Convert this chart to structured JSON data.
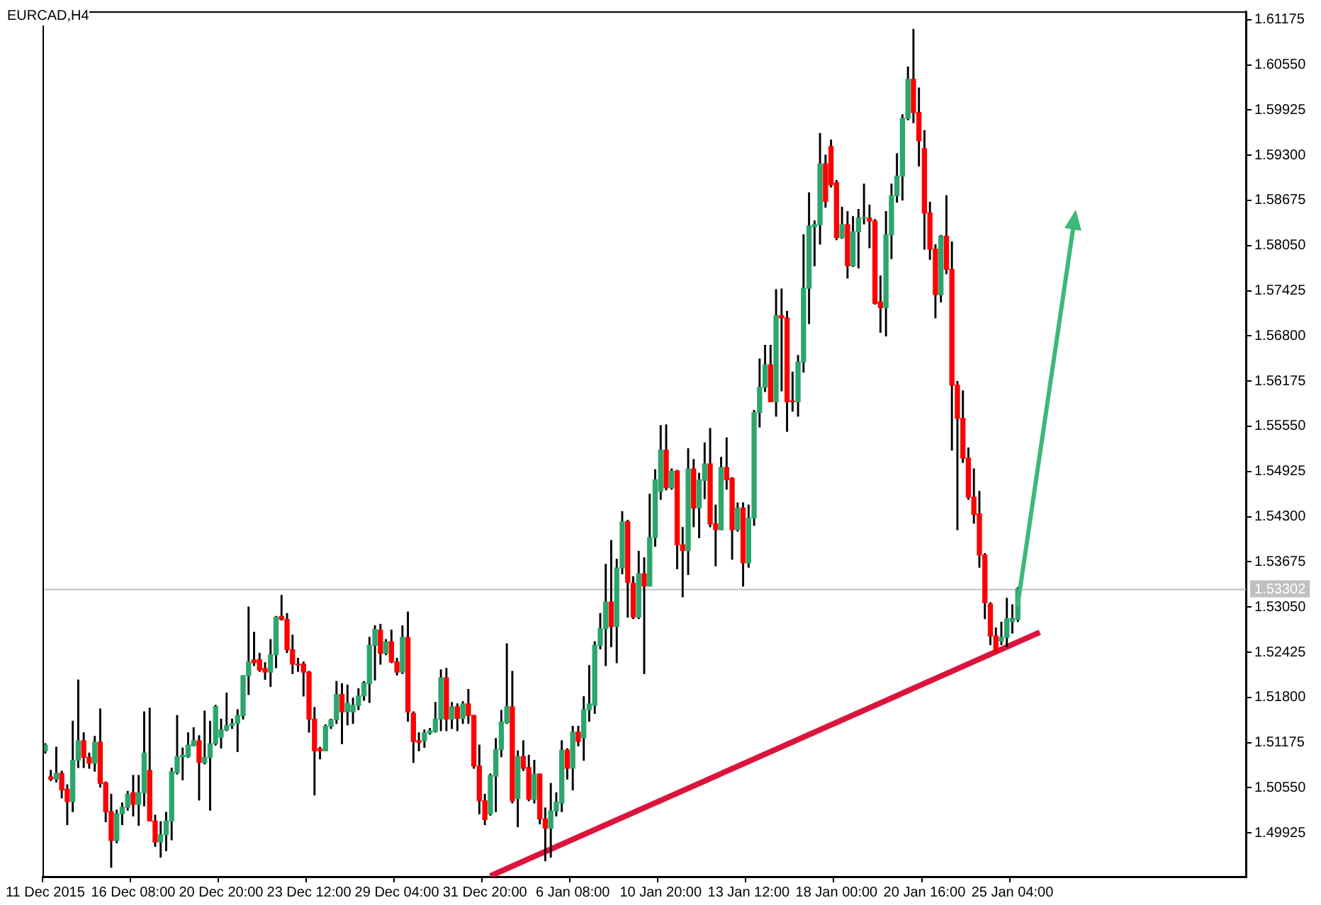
{
  "chart_data": {
    "type": "candlestick",
    "title": "EURCAD,H4",
    "categories": [
      "11 Dec 2015",
      null,
      null,
      null,
      null,
      null,
      null,
      null,
      null,
      null,
      null,
      null,
      null,
      null,
      null,
      null,
      "16 Dec 08:00",
      null,
      null,
      null,
      null,
      null,
      null,
      null,
      null,
      null,
      null,
      null,
      null,
      null,
      null,
      null,
      "20 Dec 20:00",
      null,
      null,
      null,
      null,
      null,
      null,
      null,
      null,
      null,
      null,
      null,
      null,
      null,
      null,
      null,
      "23 Dec 12:00",
      null,
      null,
      null,
      null,
      null,
      null,
      null,
      null,
      null,
      null,
      null,
      null,
      null,
      null,
      null,
      "29 Dec 04:00",
      null,
      null,
      null,
      null,
      null,
      null,
      null,
      null,
      null,
      null,
      null,
      null,
      null,
      null,
      null,
      "31 Dec 20:00",
      null,
      null,
      null,
      null,
      null,
      null,
      null,
      null,
      null,
      null,
      null,
      null,
      null,
      null,
      null,
      "6 Jan 08:00",
      null,
      null,
      null,
      null,
      null,
      null,
      null,
      null,
      null,
      null,
      null,
      null,
      null,
      null,
      null,
      "10 Jan 20:00",
      null,
      null,
      null,
      null,
      null,
      null,
      null,
      null,
      null,
      null,
      null,
      null,
      null,
      null,
      null,
      "13 Jan 12:00",
      null,
      null,
      null,
      null,
      null,
      null,
      null,
      null,
      null,
      null,
      null,
      null,
      null,
      null,
      null,
      "18 Jan 00:00",
      null,
      null,
      null,
      null,
      null,
      null,
      null,
      null,
      null,
      null,
      null,
      null,
      null,
      null,
      null,
      "20 Jan 16:00",
      null,
      null,
      null,
      null,
      null,
      null,
      null,
      null,
      null,
      null,
      null,
      null,
      null,
      null,
      null,
      "25 Jan 04:00",
      null,
      null,
      null,
      null,
      null,
      null,
      null,
      null,
      null,
      null,
      null,
      null,
      null,
      null,
      null,
      null,
      null,
      null,
      null,
      null,
      null,
      null,
      null,
      null,
      null,
      null,
      null,
      null,
      null,
      null,
      null,
      null,
      null,
      null,
      null,
      null,
      null,
      null,
      null,
      null,
      null,
      null
    ],
    "series": [
      {
        "type": "candlestick",
        "ohlc": [
          [
            1.5106,
            1.5116,
            1.5103,
            1.5114
          ],
          [
            1.507,
            1.5079,
            1.5065,
            1.5067
          ],
          [
            1.5067,
            1.5111,
            1.5063,
            1.5075
          ],
          [
            1.5075,
            1.5078,
            1.5041,
            1.5052
          ],
          [
            1.5053,
            1.5059,
            1.5004,
            1.5036
          ],
          [
            1.5036,
            1.5147,
            1.5022,
            1.5093
          ],
          [
            1.5093,
            1.5204,
            1.5083,
            1.512
          ],
          [
            1.512,
            1.5131,
            1.5083,
            1.5097
          ],
          [
            1.5097,
            1.5103,
            1.5082,
            1.5089
          ],
          [
            1.5089,
            1.5126,
            1.5078,
            1.5118
          ],
          [
            1.5118,
            1.5164,
            1.5056,
            1.5061
          ],
          [
            1.5062,
            1.5063,
            1.5008,
            1.5022
          ],
          [
            1.5022,
            1.5046,
            1.4945,
            1.4982
          ],
          [
            1.4982,
            1.5024,
            1.4979,
            1.5019
          ],
          [
            1.5019,
            1.5034,
            1.5004,
            1.5028
          ],
          [
            1.5028,
            1.505,
            1.5024,
            1.5046
          ],
          [
            1.5048,
            1.5072,
            1.5016,
            1.5032
          ],
          [
            1.5032,
            1.5072,
            1.5003,
            1.5048
          ],
          [
            1.5048,
            1.516,
            1.503,
            1.5103
          ],
          [
            1.5079,
            1.5165,
            1.5009,
            1.5009
          ],
          [
            1.5009,
            1.5017,
            1.4974,
            1.498
          ],
          [
            1.498,
            1.5008,
            1.4959,
            1.499
          ],
          [
            1.499,
            1.5021,
            1.4968,
            1.5009
          ],
          [
            1.5009,
            1.5082,
            1.4983,
            1.5077
          ],
          [
            1.5076,
            1.5155,
            1.5074,
            1.5098
          ],
          [
            1.5098,
            1.511,
            1.5066,
            1.51
          ],
          [
            1.5098,
            1.5131,
            1.5097,
            1.5114
          ],
          [
            1.5113,
            1.5138,
            1.5113,
            1.512
          ],
          [
            1.512,
            1.5127,
            1.5038,
            1.509
          ],
          [
            1.509,
            1.5161,
            1.5088,
            1.5097
          ],
          [
            1.5097,
            1.5147,
            1.5024,
            1.5116
          ],
          [
            1.5116,
            1.5169,
            1.5114,
            1.5167
          ],
          [
            1.5125,
            1.515,
            1.511,
            1.5135
          ],
          [
            1.5135,
            1.5186,
            1.5134,
            1.5141
          ],
          [
            1.5141,
            1.515,
            1.5137,
            1.5144
          ],
          [
            1.5144,
            1.5163,
            1.5105,
            1.5155
          ],
          [
            1.5155,
            1.521,
            1.515,
            1.521
          ],
          [
            1.521,
            1.5305,
            1.5184,
            1.5229
          ],
          [
            1.5232,
            1.527,
            1.5224,
            1.5228
          ],
          [
            1.5232,
            1.5241,
            1.5216,
            1.5218
          ],
          [
            1.522,
            1.5228,
            1.5205,
            1.5215
          ],
          [
            1.5215,
            1.526,
            1.5195,
            1.5239
          ],
          [
            1.5239,
            1.5292,
            1.5221,
            1.5291
          ],
          [
            1.5292,
            1.5321,
            1.5287,
            1.5288
          ],
          [
            1.5288,
            1.5296,
            1.5242,
            1.5246
          ],
          [
            1.5246,
            1.5266,
            1.5213,
            1.5226
          ],
          [
            1.5226,
            1.5234,
            1.5216,
            1.5225
          ],
          [
            1.5226,
            1.5229,
            1.5182,
            1.5215
          ],
          [
            1.5215,
            1.5216,
            1.5132,
            1.515
          ],
          [
            1.515,
            1.5166,
            1.5045,
            1.5106
          ],
          [
            1.5109,
            1.5111,
            1.5095,
            1.5106
          ],
          [
            1.5106,
            1.5142,
            1.5106,
            1.514
          ],
          [
            1.514,
            1.515,
            1.5137,
            1.5149
          ],
          [
            1.5149,
            1.5202,
            1.5144,
            1.5184
          ],
          [
            1.5184,
            1.5199,
            1.5116,
            1.516
          ],
          [
            1.516,
            1.5197,
            1.5142,
            1.5172
          ],
          [
            1.516,
            1.5179,
            1.5144,
            1.5169
          ],
          [
            1.5169,
            1.5192,
            1.5163,
            1.5182
          ],
          [
            1.5182,
            1.5202,
            1.5176,
            1.52
          ],
          [
            1.5199,
            1.5263,
            1.5173,
            1.5252
          ],
          [
            1.5252,
            1.5279,
            1.5204,
            1.5274
          ],
          [
            1.5273,
            1.5281,
            1.5226,
            1.5241
          ],
          [
            1.5241,
            1.526,
            1.5239,
            1.5257
          ],
          [
            1.5257,
            1.5273,
            1.5228,
            1.5229
          ],
          [
            1.5229,
            1.5234,
            1.5211,
            1.5215
          ],
          [
            1.5215,
            1.5279,
            1.5213,
            1.5263
          ],
          [
            1.5263,
            1.5298,
            1.5147,
            1.516
          ],
          [
            1.5158,
            1.516,
            1.509,
            1.5119
          ],
          [
            1.512,
            1.5131,
            1.5106,
            1.5118
          ],
          [
            1.512,
            1.5135,
            1.5111,
            1.5131
          ],
          [
            1.5131,
            1.5137,
            1.5129,
            1.5134
          ],
          [
            1.5133,
            1.5173,
            1.5132,
            1.515
          ],
          [
            1.515,
            1.5218,
            1.5134,
            1.5207
          ],
          [
            1.5207,
            1.522,
            1.5134,
            1.515
          ],
          [
            1.515,
            1.5173,
            1.5137,
            1.5167
          ],
          [
            1.5167,
            1.5171,
            1.5134,
            1.5151
          ],
          [
            1.5151,
            1.5174,
            1.5144,
            1.5171
          ],
          [
            1.5171,
            1.5191,
            1.5144,
            1.5155
          ],
          [
            1.5155,
            1.5155,
            1.5082,
            1.5085
          ],
          [
            1.5085,
            1.5114,
            1.5019,
            1.5037
          ],
          [
            1.5037,
            1.5046,
            1.5004,
            1.5011
          ],
          [
            1.5019,
            1.5074,
            1.5017,
            1.5072
          ],
          [
            1.5071,
            1.5123,
            1.5022,
            1.5108
          ],
          [
            1.5108,
            1.5162,
            1.5098,
            1.5146
          ],
          [
            1.5145,
            1.5254,
            1.5144,
            1.5167
          ],
          [
            1.5167,
            1.5216,
            1.5034,
            1.5037
          ],
          [
            1.504,
            1.5106,
            1.5001,
            1.5098
          ],
          [
            1.5098,
            1.512,
            1.5079,
            1.5082
          ],
          [
            1.5083,
            1.51,
            1.5037,
            1.5039
          ],
          [
            1.5039,
            1.5093,
            1.5034,
            1.5074
          ],
          [
            1.5074,
            1.5074,
            1.5005,
            1.5012
          ],
          [
            1.5012,
            1.5027,
            1.4954,
            1.4999
          ],
          [
            1.4999,
            1.5061,
            1.4959,
            1.5023
          ],
          [
            1.5023,
            1.5048,
            1.5016,
            1.5035
          ],
          [
            1.5034,
            1.512,
            1.5022,
            1.5107
          ],
          [
            1.5107,
            1.5109,
            1.5067,
            1.5082
          ],
          [
            1.5082,
            1.514,
            1.5052,
            1.5132
          ],
          [
            1.5132,
            1.514,
            1.5113,
            1.5119
          ],
          [
            1.5124,
            1.5181,
            1.5093,
            1.5163
          ],
          [
            1.5163,
            1.5224,
            1.5147,
            1.5171
          ],
          [
            1.5169,
            1.5257,
            1.5158,
            1.5252
          ],
          [
            1.5252,
            1.5296,
            1.5247,
            1.5275
          ],
          [
            1.5275,
            1.5364,
            1.5224,
            1.5312
          ],
          [
            1.5312,
            1.5397,
            1.525,
            1.5278
          ],
          [
            1.5278,
            1.5371,
            1.5228,
            1.5359
          ],
          [
            1.5359,
            1.5437,
            1.5351,
            1.5423
          ],
          [
            1.5423,
            1.5425,
            1.5291,
            1.5339
          ],
          [
            1.5338,
            1.5347,
            1.5289,
            1.5291
          ],
          [
            1.5291,
            1.5382,
            1.5289,
            1.5351
          ],
          [
            1.5351,
            1.5373,
            1.5213,
            1.5334
          ],
          [
            1.5334,
            1.5461,
            1.5334,
            1.5401
          ],
          [
            1.5401,
            1.5495,
            1.5389,
            1.5481
          ],
          [
            1.5465,
            1.5556,
            1.5454,
            1.5522
          ],
          [
            1.5522,
            1.5557,
            1.5467,
            1.547
          ],
          [
            1.547,
            1.5496,
            1.5468,
            1.5493
          ],
          [
            1.5493,
            1.5494,
            1.5358,
            1.5391
          ],
          [
            1.5391,
            1.5415,
            1.5319,
            1.5383
          ],
          [
            1.5383,
            1.5524,
            1.535,
            1.5496
          ],
          [
            1.5496,
            1.5509,
            1.5416,
            1.5442
          ],
          [
            1.5442,
            1.549,
            1.5401,
            1.5481
          ],
          [
            1.548,
            1.5532,
            1.5455,
            1.5503
          ],
          [
            1.5503,
            1.5552,
            1.5416,
            1.542
          ],
          [
            1.542,
            1.5446,
            1.5362,
            1.5412
          ],
          [
            1.5412,
            1.5512,
            1.5412,
            1.5498
          ],
          [
            1.5498,
            1.5539,
            1.5468,
            1.5481
          ],
          [
            1.5483,
            1.5484,
            1.5371,
            1.5412
          ],
          [
            1.5412,
            1.5449,
            1.541,
            1.5442
          ],
          [
            1.5442,
            1.5449,
            1.5334,
            1.5366
          ],
          [
            1.5366,
            1.5446,
            1.536,
            1.5428
          ],
          [
            1.5428,
            1.5577,
            1.5418,
            1.5574
          ],
          [
            1.5574,
            1.5648,
            1.5554,
            1.5609
          ],
          [
            1.5609,
            1.5667,
            1.5603,
            1.564
          ],
          [
            1.564,
            1.5667,
            1.5589,
            1.5589
          ],
          [
            1.5589,
            1.5744,
            1.5569,
            1.5708
          ],
          [
            1.5708,
            1.5745,
            1.5604,
            1.5705
          ],
          [
            1.5705,
            1.5714,
            1.5548,
            1.5589
          ],
          [
            1.559,
            1.563,
            1.5576,
            1.5589
          ],
          [
            1.5589,
            1.5653,
            1.5569,
            1.5644
          ],
          [
            1.5644,
            1.582,
            1.563,
            1.5746
          ],
          [
            1.5746,
            1.5878,
            1.5697,
            1.5832
          ],
          [
            1.5831,
            1.5839,
            1.5777,
            1.5834
          ],
          [
            1.5834,
            1.596,
            1.5807,
            1.5918
          ],
          [
            1.5918,
            1.593,
            1.5858,
            1.5866
          ],
          [
            1.5942,
            1.5951,
            1.5886,
            1.5889
          ],
          [
            1.5892,
            1.5895,
            1.5813,
            1.5816
          ],
          [
            1.5816,
            1.5858,
            1.5815,
            1.5834
          ],
          [
            1.5834,
            1.5852,
            1.576,
            1.5777
          ],
          [
            1.5777,
            1.5845,
            1.5776,
            1.5824
          ],
          [
            1.5824,
            1.5855,
            1.5774,
            1.5843
          ],
          [
            1.5843,
            1.589,
            1.5835,
            1.5844
          ],
          [
            1.5843,
            1.5861,
            1.5802,
            1.5839
          ],
          [
            1.5839,
            1.5841,
            1.5724,
            1.5725
          ],
          [
            1.5727,
            1.5763,
            1.5685,
            1.5719
          ],
          [
            1.5719,
            1.5852,
            1.568,
            1.582
          ],
          [
            1.582,
            1.589,
            1.5787,
            1.5874
          ],
          [
            1.5874,
            1.5932,
            1.5865,
            1.5901
          ],
          [
            1.5901,
            1.5986,
            1.5868,
            1.5981
          ],
          [
            1.5981,
            1.6052,
            1.5979,
            1.6035
          ],
          [
            1.6035,
            1.6104,
            1.5975,
            1.5989
          ],
          [
            1.5989,
            1.6023,
            1.5915,
            1.595
          ],
          [
            1.5939,
            1.5964,
            1.58,
            1.585
          ],
          [
            1.585,
            1.5865,
            1.5786,
            1.58
          ],
          [
            1.58,
            1.5806,
            1.5705,
            1.5737
          ],
          [
            1.5737,
            1.5819,
            1.5727,
            1.5818
          ],
          [
            1.5818,
            1.5874,
            1.5766,
            1.5772
          ],
          [
            1.5772,
            1.581,
            1.5522,
            1.5612
          ],
          [
            1.5612,
            1.5617,
            1.5412,
            1.5566
          ],
          [
            1.5566,
            1.5604,
            1.5505,
            1.5511
          ],
          [
            1.5511,
            1.5525,
            1.5454,
            1.5457
          ],
          [
            1.5457,
            1.5496,
            1.5421,
            1.5433
          ],
          [
            1.5434,
            1.5465,
            1.536,
            1.5377
          ],
          [
            1.5377,
            1.5379,
            1.5289,
            1.5311
          ],
          [
            1.5309,
            1.5311,
            1.5253,
            1.5265
          ],
          [
            1.5265,
            1.5276,
            1.5243,
            1.5243
          ],
          [
            1.5258,
            1.5284,
            1.5253,
            1.5263
          ],
          [
            1.5263,
            1.5317,
            1.525,
            1.5289
          ],
          [
            1.5285,
            1.5308,
            1.5269,
            1.5289
          ],
          [
            1.5288,
            1.5332,
            1.5285,
            1.533
          ],
          null,
          null,
          null,
          null,
          null,
          null,
          null,
          null,
          null,
          null,
          null,
          null,
          null,
          null,
          null,
          null,
          null,
          null,
          null,
          null,
          null,
          null,
          null,
          null,
          null,
          null,
          null,
          null,
          null,
          null,
          null,
          null,
          null,
          null,
          null,
          null,
          null,
          null,
          null,
          null,
          null
        ],
        "colors": [
          "#2ca66c",
          "#ff0000",
          "#2ca66c",
          "#ff0000",
          "#ff0000",
          "#2ca66c",
          "#2ca66c",
          "#ff0000",
          "#ff0000",
          "#2ca66c",
          "#ff0000",
          "#ff0000",
          "#ff0000",
          "#2ca66c",
          "#2ca66c",
          "#2ca66c",
          "#ff0000",
          "#2ca66c",
          "#2ca66c",
          "#ff0000",
          "#ff0000",
          "#2ca66c",
          "#2ca66c",
          "#2ca66c",
          "#2ca66c",
          "#2ca66c",
          "#2ca66c",
          "#2ca66c",
          "#ff0000",
          "#2ca66c",
          "#2ca66c",
          "#2ca66c",
          "#2ca66c",
          "#2ca66c",
          "#2ca66c",
          "#2ca66c",
          "#2ca66c",
          "#2ca66c",
          "#ff0000",
          "#ff0000",
          "#ff0000",
          "#2ca66c",
          "#2ca66c",
          "#ff0000",
          "#ff0000",
          "#ff0000",
          "#ff0000",
          "#ff0000",
          "#ff0000",
          "#ff0000",
          "#ff0000",
          "#2ca66c",
          "#2ca66c",
          "#2ca66c",
          "#ff0000",
          "#2ca66c",
          "#2ca66c",
          "#2ca66c",
          "#2ca66c",
          "#2ca66c",
          "#2ca66c",
          "#ff0000",
          "#2ca66c",
          "#ff0000",
          "#ff0000",
          "#2ca66c",
          "#ff0000",
          "#ff0000",
          "#ff0000",
          "#2ca66c",
          "#2ca66c",
          "#2ca66c",
          "#2ca66c",
          "#ff0000",
          "#2ca66c",
          "#ff0000",
          "#2ca66c",
          "#ff0000",
          "#ff0000",
          "#ff0000",
          "#ff0000",
          "#2ca66c",
          "#2ca66c",
          "#2ca66c",
          "#2ca66c",
          "#ff0000",
          "#2ca66c",
          "#ff0000",
          "#ff0000",
          "#2ca66c",
          "#ff0000",
          "#ff0000",
          "#2ca66c",
          "#2ca66c",
          "#2ca66c",
          "#ff0000",
          "#2ca66c",
          "#ff0000",
          "#2ca66c",
          "#2ca66c",
          "#2ca66c",
          "#2ca66c",
          "#2ca66c",
          "#ff0000",
          "#2ca66c",
          "#2ca66c",
          "#ff0000",
          "#ff0000",
          "#2ca66c",
          "#ff0000",
          "#2ca66c",
          "#2ca66c",
          "#2ca66c",
          "#ff0000",
          "#2ca66c",
          "#ff0000",
          "#ff0000",
          "#2ca66c",
          "#ff0000",
          "#2ca66c",
          "#2ca66c",
          "#ff0000",
          "#ff0000",
          "#2ca66c",
          "#ff0000",
          "#ff0000",
          "#2ca66c",
          "#ff0000",
          "#2ca66c",
          "#2ca66c",
          "#2ca66c",
          "#2ca66c",
          "#ff0000",
          "#2ca66c",
          "#ff0000",
          "#ff0000",
          "#ff0000",
          "#2ca66c",
          "#2ca66c",
          "#2ca66c",
          "#2ca66c",
          "#2ca66c",
          "#ff0000",
          "#ff0000",
          "#ff0000",
          "#2ca66c",
          "#ff0000",
          "#2ca66c",
          "#2ca66c",
          "#2ca66c",
          "#ff0000",
          "#ff0000",
          "#ff0000",
          "#2ca66c",
          "#2ca66c",
          "#2ca66c",
          "#2ca66c",
          "#2ca66c",
          "#ff0000",
          "#ff0000",
          "#ff0000",
          "#ff0000",
          "#ff0000",
          "#2ca66c",
          "#ff0000",
          "#ff0000",
          "#ff0000",
          "#ff0000",
          "#ff0000",
          "#ff0000",
          "#ff0000",
          "#ff0000",
          "#ff0000",
          "#ff0000",
          "#2ca66c",
          "#2ca66c",
          "#2ca66c",
          "#2ca66c",
          null,
          null,
          null,
          null,
          null,
          null,
          null,
          null,
          null,
          null,
          null,
          null,
          null,
          null,
          null,
          null,
          null,
          null,
          null,
          null,
          null,
          null,
          null,
          null,
          null,
          null,
          null,
          null,
          null,
          null,
          null,
          null,
          null,
          null,
          null,
          null,
          null,
          null,
          null,
          null,
          null
        ]
      },
      {
        "type": "line",
        "color": "#dc143c",
        "values": [
          null,
          null,
          null,
          null,
          null,
          null,
          null,
          null,
          null,
          null,
          null,
          null,
          null,
          null,
          null,
          null,
          null,
          null,
          null,
          null,
          null,
          null,
          null,
          null,
          null,
          null,
          null,
          null,
          null,
          null,
          null,
          null,
          null,
          null,
          null,
          null,
          null,
          null,
          null,
          null,
          null,
          null,
          null,
          null,
          null,
          null,
          null,
          null,
          null,
          null,
          null,
          null,
          null,
          null,
          null,
          null,
          null,
          null,
          null,
          null,
          null,
          null,
          null,
          null,
          null,
          null,
          null,
          null,
          null,
          null,
          null,
          null,
          null,
          null,
          null,
          null,
          null,
          null,
          null,
          null,
          null,
          1.4933,
          null,
          null,
          null,
          null,
          null,
          null,
          null,
          null,
          null,
          null,
          null,
          null,
          null,
          null,
          null,
          null,
          null,
          null,
          null,
          null,
          null,
          null,
          null,
          null,
          null,
          null,
          null,
          null,
          null,
          null,
          null,
          null,
          null,
          null,
          null,
          null,
          null,
          null,
          null,
          null,
          null,
          null,
          null,
          null,
          null,
          null,
          null,
          null,
          null,
          null,
          null,
          null,
          null,
          null,
          null,
          null,
          null,
          null,
          null,
          null,
          null,
          null,
          null,
          null,
          null,
          null,
          null,
          null,
          null,
          null,
          null,
          null,
          null,
          null,
          null,
          null,
          null,
          null,
          null,
          null,
          null,
          null,
          null,
          null,
          null,
          null,
          null,
          null,
          null,
          null,
          null,
          null,
          null,
          null,
          null,
          null,
          null,
          null,
          null,
          1.527,
          null,
          null,
          null,
          null,
          null,
          null,
          null,
          null,
          null,
          null,
          null,
          null,
          null,
          null,
          null,
          null,
          null,
          null,
          null,
          null,
          null,
          null,
          null,
          null,
          null,
          null,
          null,
          null,
          null,
          null,
          null,
          null,
          null,
          null,
          null,
          null,
          null
        ]
      }
    ],
    "ylim": [
      1.4932,
      1.6129
    ],
    "yticks": [
      1.49925,
      {
        "value": 1.5055,
        "label": "1.50550"
      },
      1.51175,
      {
        "value": 1.518,
        "label": "1.51800"
      },
      1.52425,
      {
        "value": 1.5305,
        "label": "1.53050"
      },
      1.53675,
      {
        "value": 1.543,
        "label": "1.54300"
      },
      1.54925,
      {
        "value": 1.5555,
        "label": "1.55550"
      },
      1.56175,
      {
        "value": 1.568,
        "label": "1.56800"
      },
      1.57425,
      {
        "value": 1.5805,
        "label": "1.58050"
      },
      1.58675,
      {
        "value": 1.593,
        "label": "1.59300"
      },
      1.59925,
      {
        "value": 1.6055,
        "label": "1.60550"
      },
      1.61175
    ],
    "ref_lines": [
      {
        "axis": "y",
        "value": 1.53302,
        "label": "1.53302",
        "color": "#c0c0c0"
      }
    ]
  }
}
